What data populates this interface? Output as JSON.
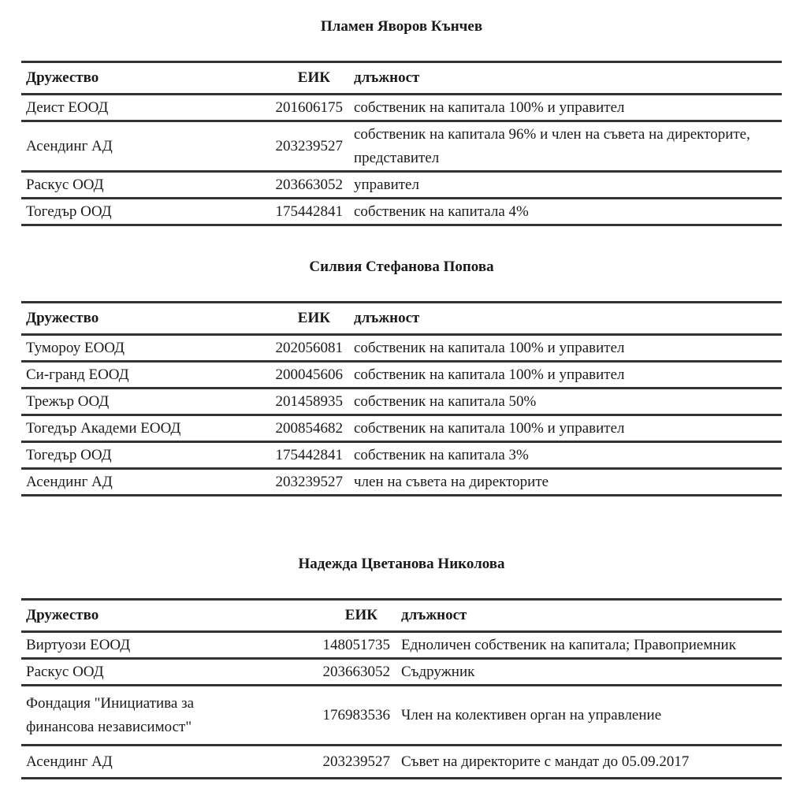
{
  "columns": {
    "company": "Дружество",
    "eik": "ЕИК",
    "position": "длъжност"
  },
  "sections": [
    {
      "person": "Пламен Яворов Кънчев",
      "rows": [
        {
          "company": "Деист ЕООД",
          "eik": "201606175",
          "position": "собственик на капитала 100% и управител"
        },
        {
          "company": "Асендинг АД",
          "eik": "203239527",
          "position": "собственик на капитала 96% и член на съвета на директорите, представител"
        },
        {
          "company": "Раскус ООД",
          "eik": "203663052",
          "position": "управител"
        },
        {
          "company": "Тогедър ООД",
          "eik": "175442841",
          "position": "собственик на капитала 4%"
        }
      ]
    },
    {
      "person": "Силвия Стефанова Попова",
      "rows": [
        {
          "company": "Тумороу ЕООД",
          "eik": "202056081",
          "position": "собственик на капитала 100% и управител"
        },
        {
          "company": "Си-гранд  ЕООД",
          "eik": "200045606",
          "position": "собственик на капитала 100% и управител"
        },
        {
          "company": "Трежър ООД",
          "eik": "201458935",
          "position": "собственик на капитала 50%"
        },
        {
          "company": "Тогедър Академи ЕООД",
          "eik": "200854682",
          "position": "собственик на капитала 100% и управител"
        },
        {
          "company": "Тогедър ООД",
          "eik": "175442841",
          "position": "собственик на капитала 3%"
        },
        {
          "company": "Асендинг АД",
          "eik": "203239527",
          "position": "член на съвета на директорите"
        }
      ]
    },
    {
      "person": "Надежда Цветанова Николова",
      "rows": [
        {
          "company": "Виртуози ЕООД",
          "eik": "148051735",
          "position": "Едноличен собственик на капитала; Правоприемник"
        },
        {
          "company": "Раскус ООД",
          "eik": "203663052",
          "position": "Съдружник"
        },
        {
          "company": "Фондация \"Инициатива за финансова независимост\"",
          "eik": "176983536",
          "position": "Член на колективен орган на управление"
        },
        {
          "company": "Асендинг АД",
          "eik": "203239527",
          "position": "Съвет на директорите с мандат до 05.09.2017"
        }
      ]
    }
  ]
}
